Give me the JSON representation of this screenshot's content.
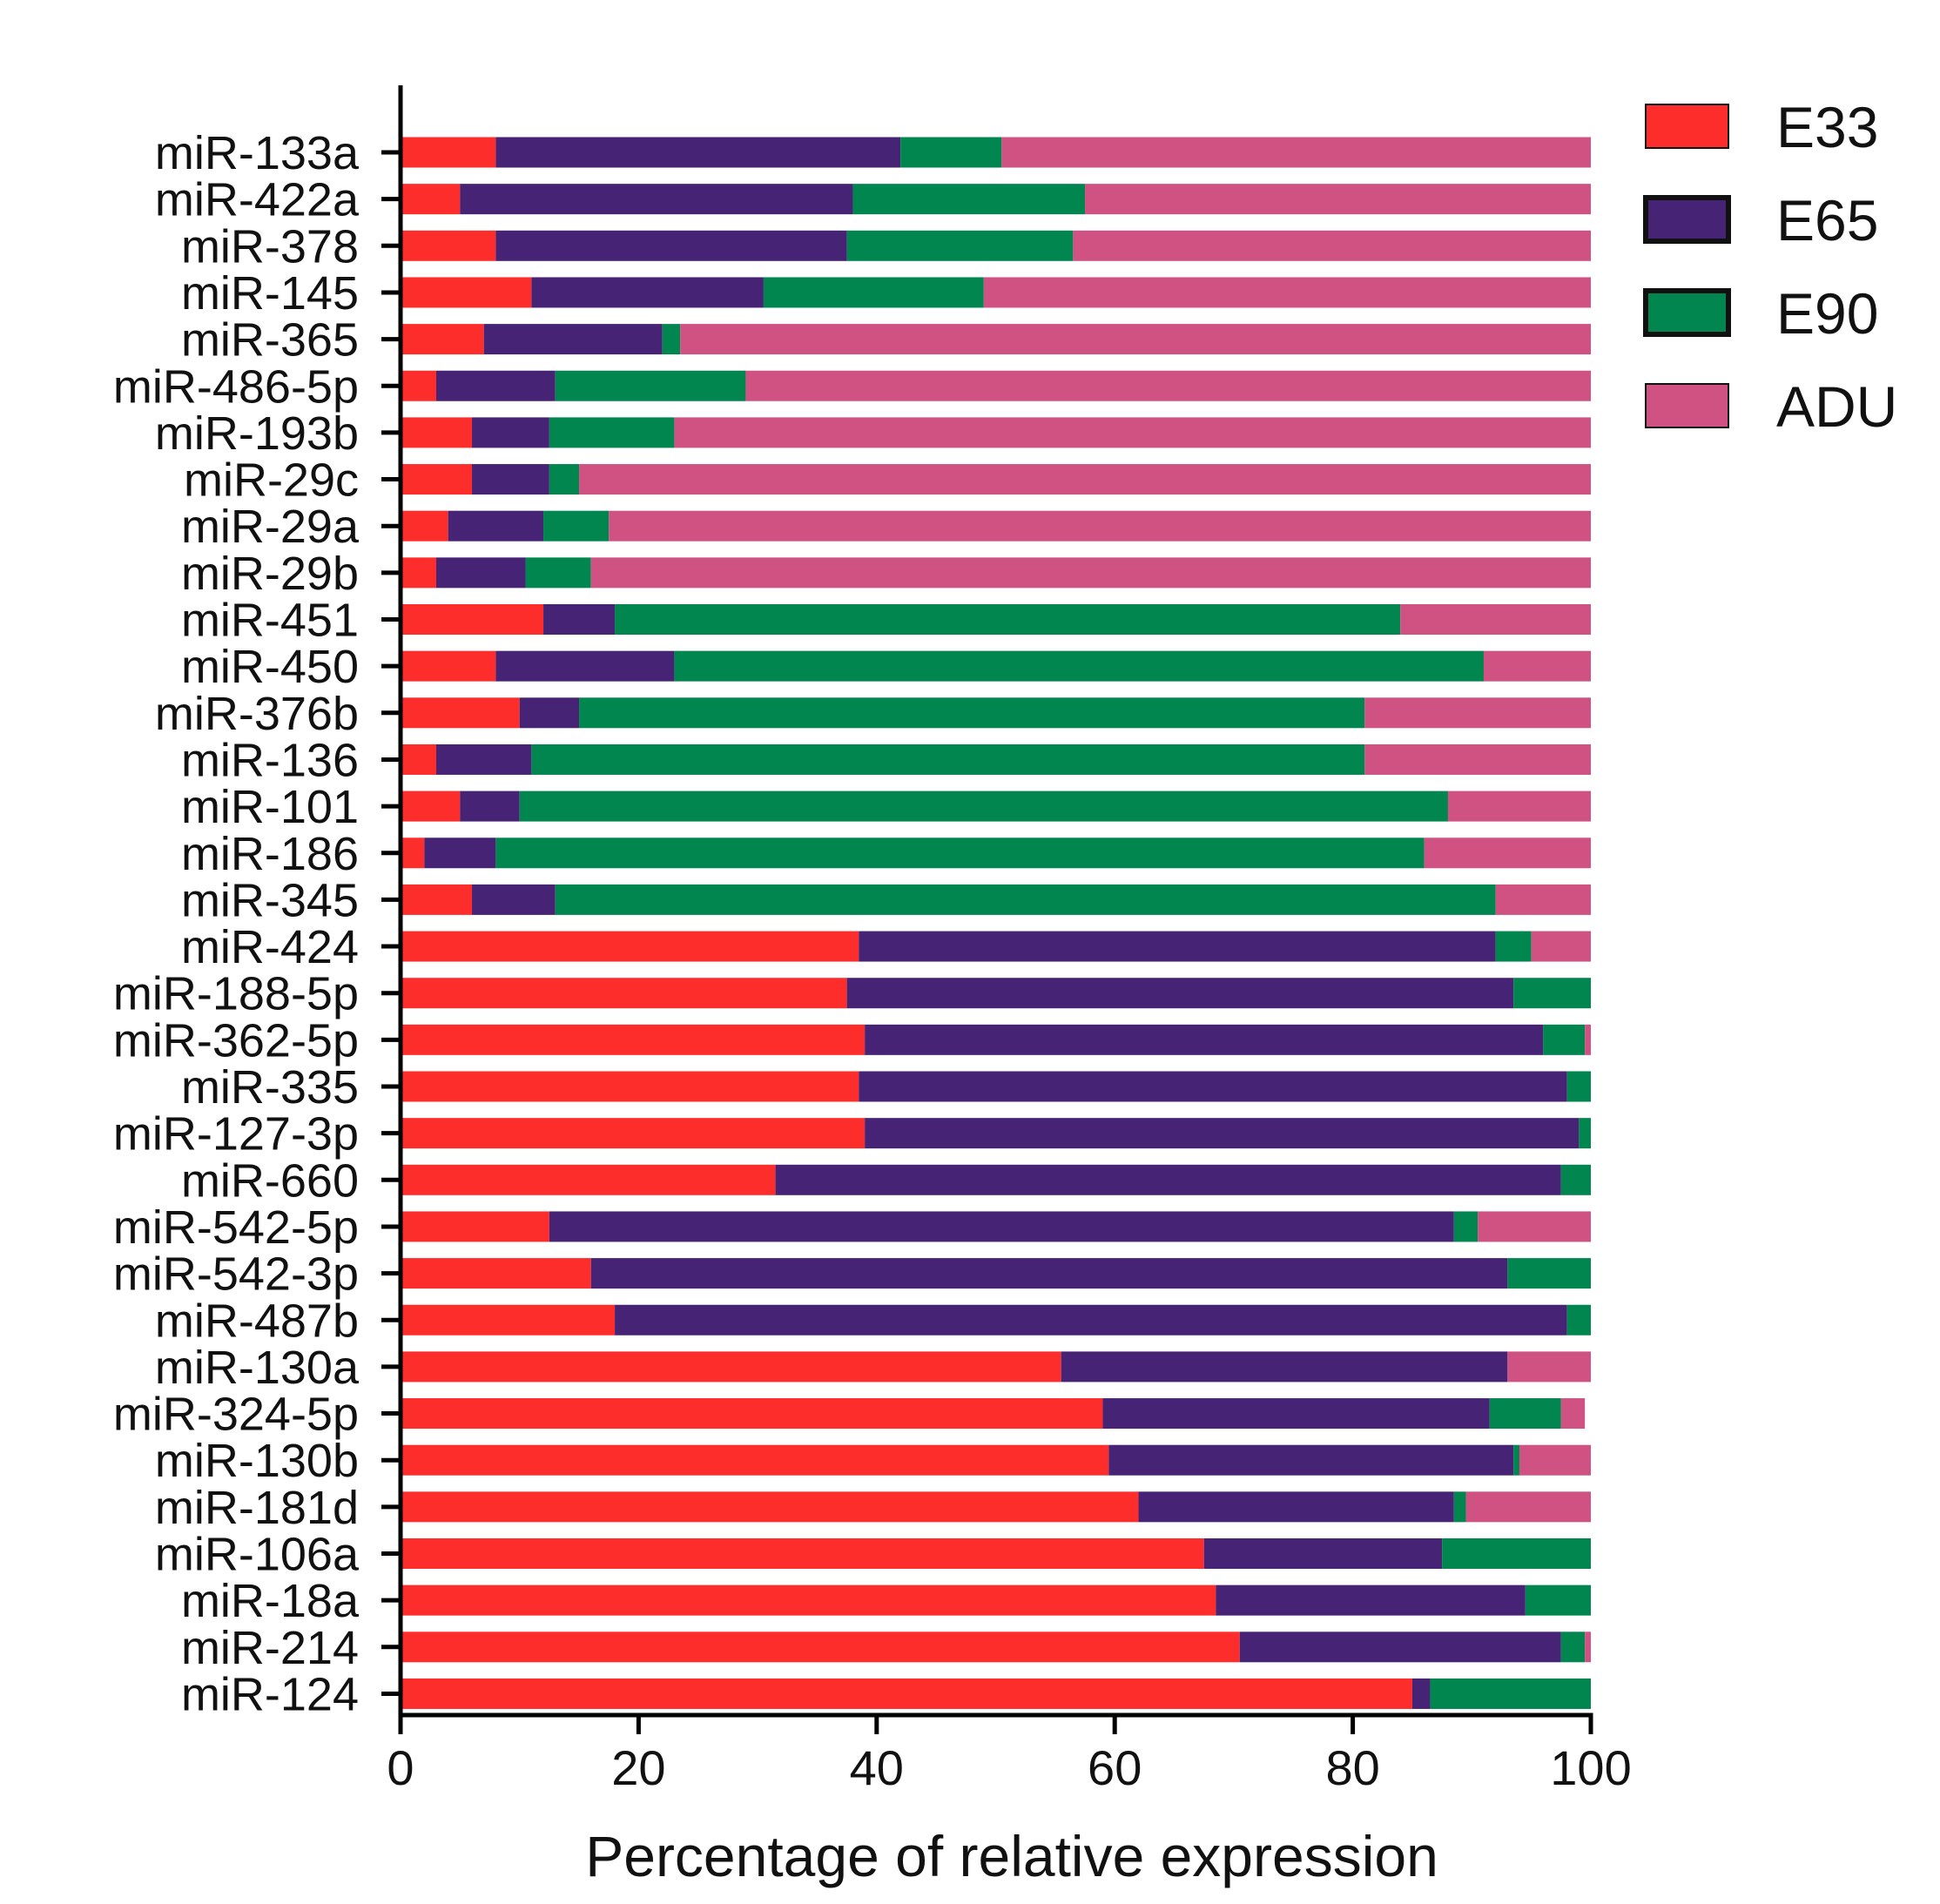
{
  "chart_data": {
    "type": "bar",
    "orientation": "horizontal",
    "stacked": true,
    "title": "",
    "xlabel": "Percentage of relative expression",
    "ylabel": "",
    "xlim": [
      0,
      100
    ],
    "xticks": [
      0,
      20,
      40,
      60,
      80,
      100
    ],
    "grid": false,
    "legend_position": "top-right",
    "categories": [
      "miR-133a",
      "miR-422a",
      "miR-378",
      "miR-145",
      "miR-365",
      "miR-486-5p",
      "miR-193b",
      "miR-29c",
      "miR-29a",
      "miR-29b",
      "miR-451",
      "miR-450",
      "miR-376b",
      "miR-136",
      "miR-101",
      "miR-186",
      "miR-345",
      "miR-424",
      "miR-188-5p",
      "miR-362-5p",
      "miR-335",
      "miR-127-3p",
      "miR-660",
      "miR-542-5p",
      "miR-542-3p",
      "miR-487b",
      "miR-130a",
      "miR-324-5p",
      "miR-130b",
      "miR-181d",
      "miR-106a",
      "miR-18a",
      "miR-214",
      "miR-124"
    ],
    "series": [
      {
        "name": "E33",
        "color": "#fd2d2b",
        "values": [
          8,
          5,
          8,
          11,
          7,
          3,
          6,
          6,
          4,
          3,
          12,
          8,
          10,
          3,
          5,
          2,
          6,
          38.5,
          37.5,
          39,
          38.5,
          39,
          31.5,
          12.5,
          16,
          18,
          55.5,
          59,
          59.5,
          62,
          67.5,
          68.5,
          70.5,
          85
        ]
      },
      {
        "name": "E65",
        "color": "#472375",
        "values": [
          34,
          33,
          29.5,
          19.5,
          15,
          10,
          6.5,
          6.5,
          8,
          7.5,
          6,
          15,
          5,
          8,
          5,
          6,
          7,
          53.5,
          56,
          57,
          59.5,
          60,
          66,
          76,
          77,
          80,
          37.5,
          32.5,
          34,
          26.5,
          20,
          26,
          27,
          1.5
        ]
      },
      {
        "name": "E90",
        "color": "#028650",
        "values": [
          8.5,
          19.5,
          19,
          18.5,
          1.5,
          16,
          10.5,
          2.5,
          5.5,
          5.5,
          66,
          68,
          66,
          70,
          78,
          78,
          79,
          3,
          6.5,
          3.5,
          2,
          1,
          2.5,
          2,
          7,
          2,
          0,
          6,
          0.5,
          1,
          12.5,
          5.5,
          2,
          13.5
        ]
      },
      {
        "name": "ADU",
        "color": "#d05282",
        "values": [
          49.5,
          42.5,
          43.5,
          51,
          76.5,
          71,
          77,
          85,
          82.5,
          84,
          16,
          9,
          19,
          19,
          12,
          14,
          8,
          5,
          0,
          0.5,
          0,
          0,
          0,
          9.5,
          0,
          0,
          7,
          2,
          6,
          10.5,
          0,
          0,
          0.5,
          0
        ]
      }
    ]
  }
}
